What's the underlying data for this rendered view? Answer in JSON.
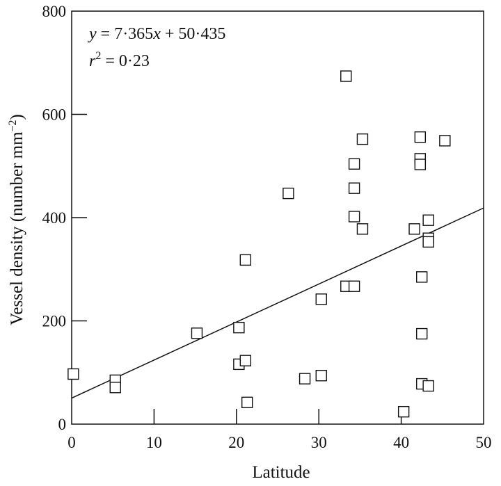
{
  "chart_data": {
    "type": "scatter",
    "xlabel": "Latitude",
    "ylabel": "Vessel density (number mm",
    "ylabel_sup": "−2",
    "ylabel_close": ")",
    "xlim": [
      0,
      50
    ],
    "ylim": [
      0,
      800
    ],
    "xticks": [
      0,
      10,
      20,
      30,
      40,
      50
    ],
    "yticks": [
      0,
      200,
      400,
      600,
      800
    ],
    "grid": false,
    "annotations": {
      "eq_y": "y",
      "eq_mid": " = 7·365",
      "eq_x": "x",
      "eq_tail": " + 50·435",
      "r_r": "r",
      "r_sup": "2",
      "r_tail": " = 0·23"
    },
    "fit": {
      "slope": 7.365,
      "intercept": 50.435
    },
    "points": [
      {
        "x": 0.2,
        "y": 97
      },
      {
        "x": 5.3,
        "y": 85
      },
      {
        "x": 5.3,
        "y": 71
      },
      {
        "x": 15.2,
        "y": 176
      },
      {
        "x": 20.3,
        "y": 187
      },
      {
        "x": 20.3,
        "y": 116
      },
      {
        "x": 21.1,
        "y": 318
      },
      {
        "x": 21.1,
        "y": 123
      },
      {
        "x": 21.3,
        "y": 42
      },
      {
        "x": 26.3,
        "y": 447
      },
      {
        "x": 28.3,
        "y": 88
      },
      {
        "x": 30.3,
        "y": 242
      },
      {
        "x": 30.3,
        "y": 94
      },
      {
        "x": 33.3,
        "y": 674
      },
      {
        "x": 33.3,
        "y": 267
      },
      {
        "x": 34.3,
        "y": 267
      },
      {
        "x": 34.3,
        "y": 504
      },
      {
        "x": 34.3,
        "y": 457
      },
      {
        "x": 34.3,
        "y": 402
      },
      {
        "x": 35.3,
        "y": 552
      },
      {
        "x": 35.3,
        "y": 378
      },
      {
        "x": 40.3,
        "y": 24
      },
      {
        "x": 41.6,
        "y": 378
      },
      {
        "x": 42.3,
        "y": 556
      },
      {
        "x": 42.3,
        "y": 514
      },
      {
        "x": 42.3,
        "y": 503
      },
      {
        "x": 42.5,
        "y": 285
      },
      {
        "x": 42.5,
        "y": 175
      },
      {
        "x": 42.5,
        "y": 78
      },
      {
        "x": 43.3,
        "y": 395
      },
      {
        "x": 43.3,
        "y": 360
      },
      {
        "x": 43.3,
        "y": 353
      },
      {
        "x": 43.3,
        "y": 74
      },
      {
        "x": 45.3,
        "y": 549
      }
    ]
  }
}
